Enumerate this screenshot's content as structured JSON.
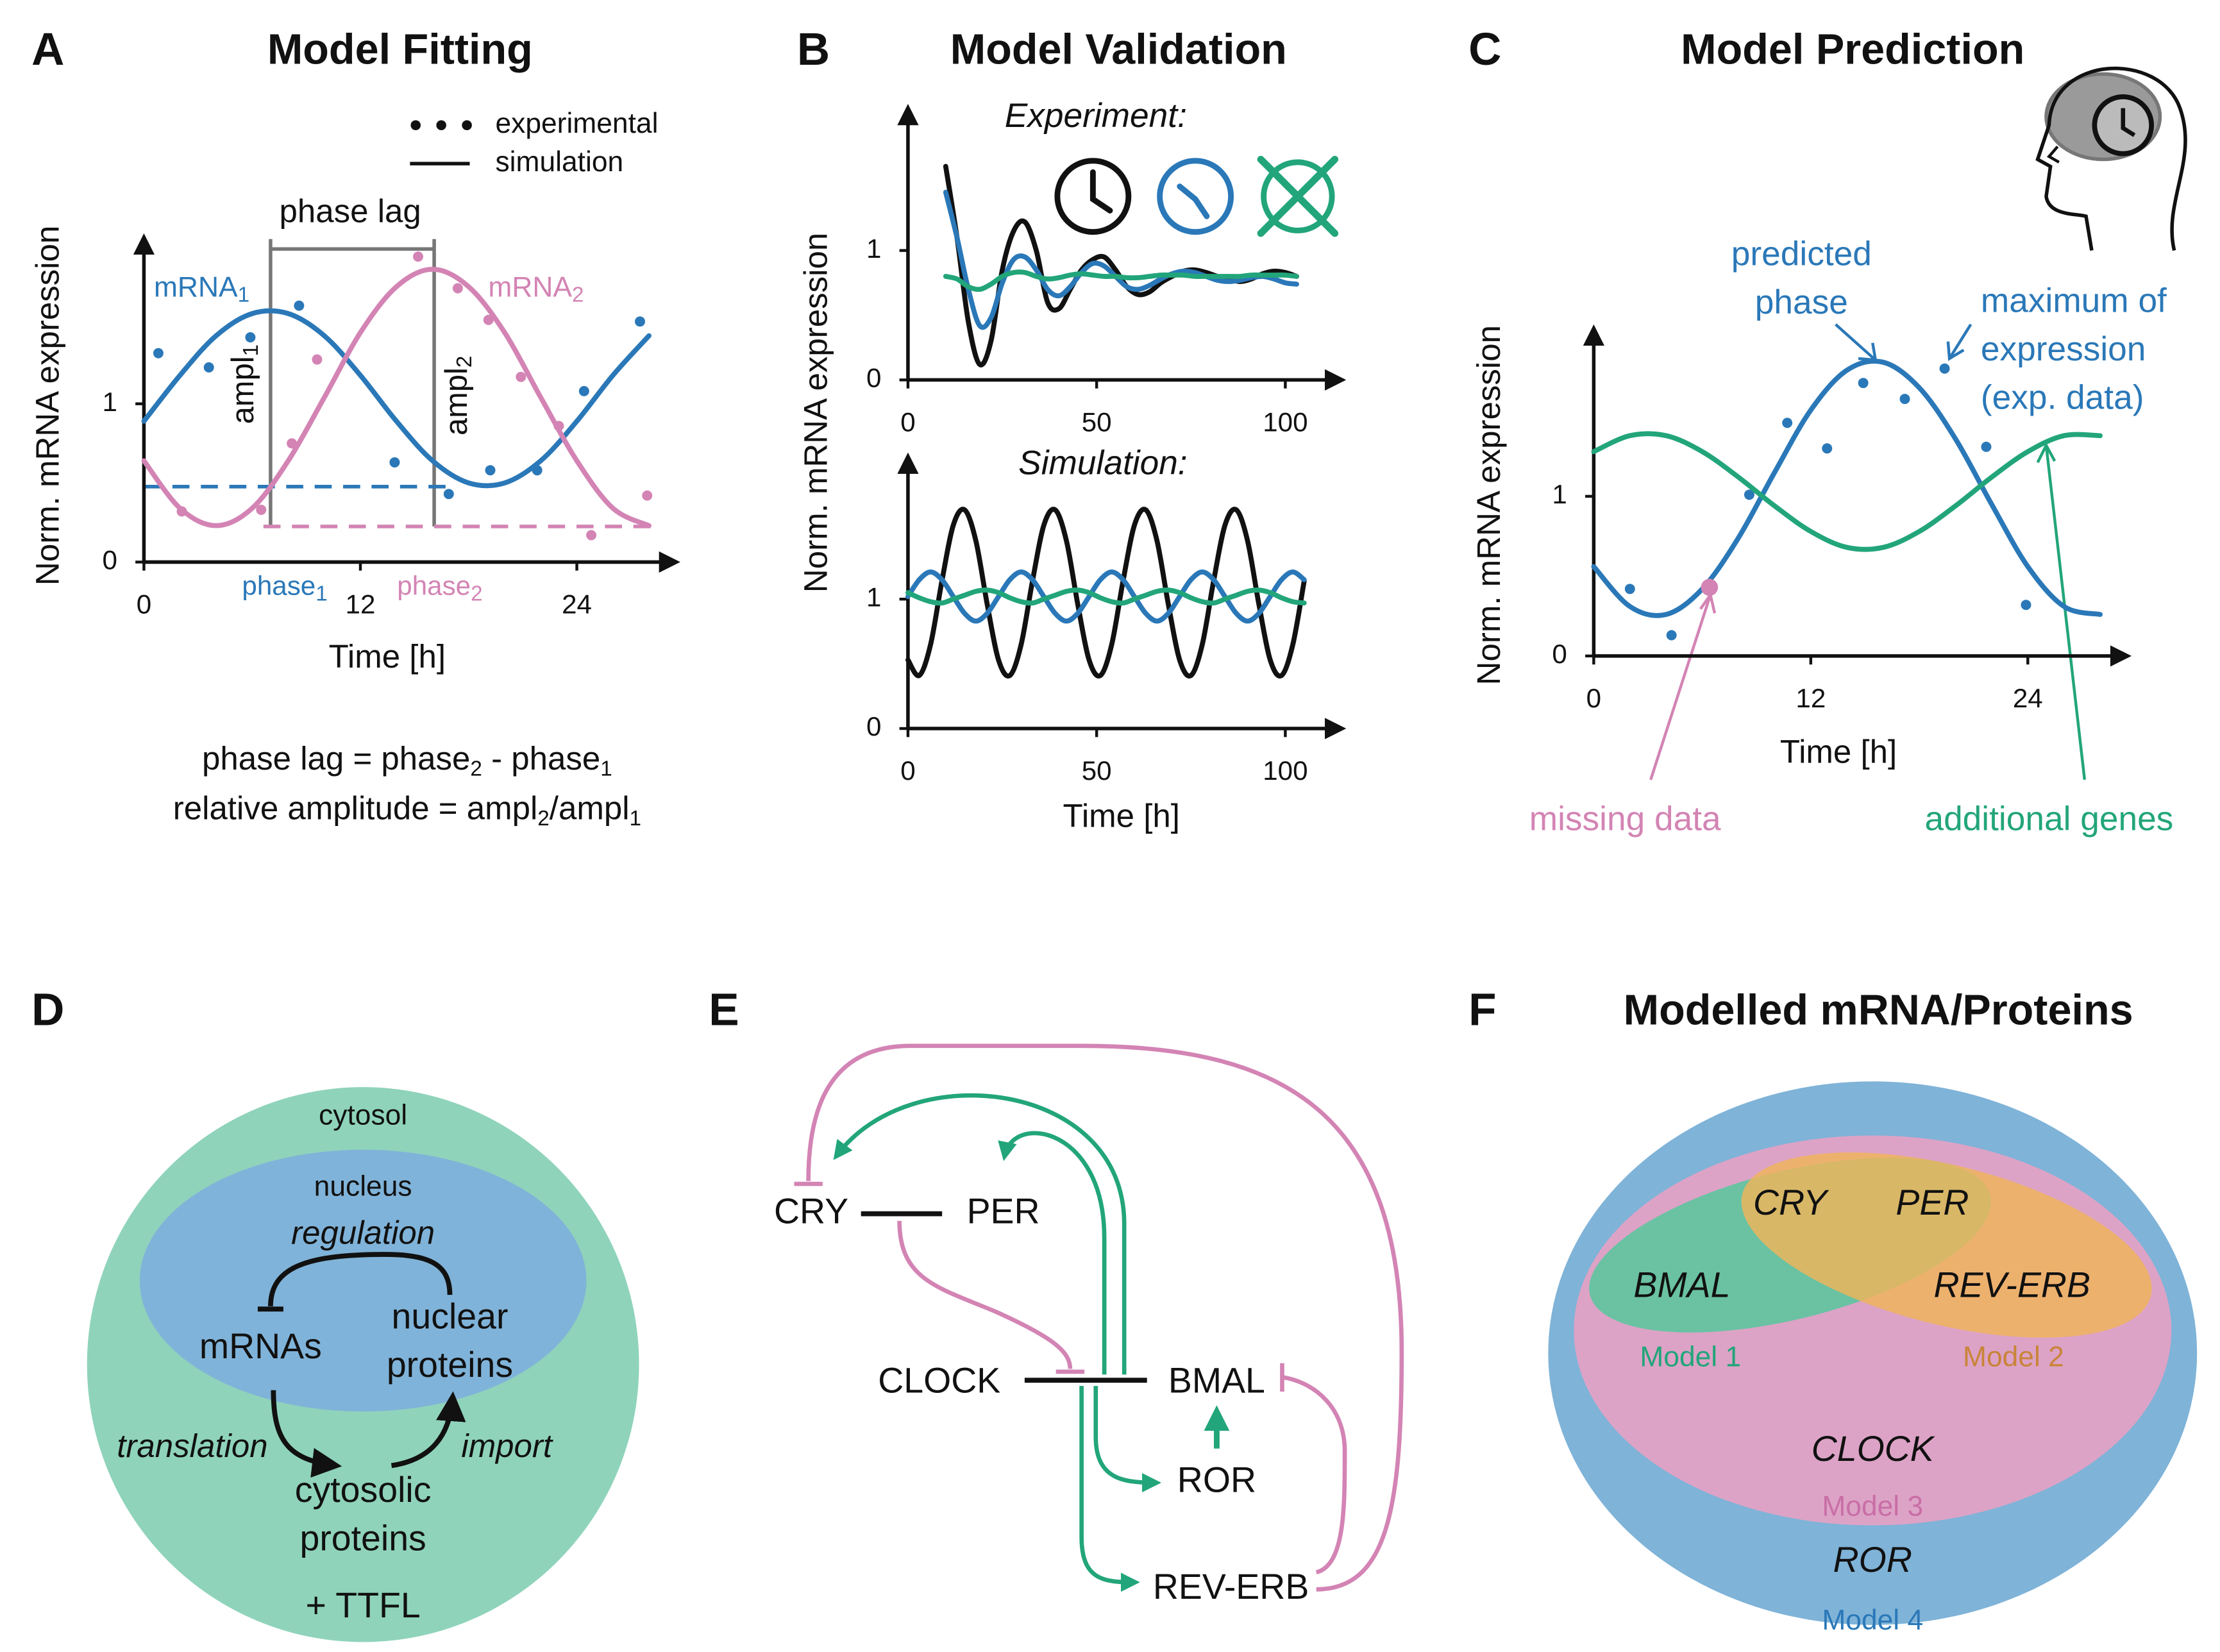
{
  "panel_labels": [
    "A",
    "B",
    "C",
    "D",
    "E",
    "F"
  ],
  "chart_data": [
    {
      "type": "line",
      "title": "Model Fitting",
      "xlabel": "Time [h]",
      "ylabel": "Norm. mRNA expression",
      "legend": [
        "experimental",
        "simulation"
      ],
      "xlim": [
        0,
        29.5
      ],
      "ylim": [
        0,
        2.05
      ],
      "xticks": [
        0,
        12,
        24
      ],
      "yticks": [
        0,
        1
      ],
      "x": [
        0,
        2,
        4,
        6,
        8,
        10,
        12,
        14,
        16,
        18,
        20,
        22,
        24,
        26,
        28
      ],
      "series": [
        {
          "label": {
            "text": "mRNA",
            "sub": "1"
          },
          "color": "#2a78b8",
          "values": [
            0.89,
            1.18,
            1.43,
            1.57,
            1.57,
            1.43,
            1.18,
            0.89,
            0.64,
            0.5,
            0.5,
            0.64,
            0.89,
            1.18,
            1.43
          ],
          "points": {
            "x": [
              0.8,
              3.6,
              5.9,
              8.6,
              13.9,
              16.9,
              19.2,
              21.8,
              24.4,
              27.5
            ],
            "values": [
              1.32,
              1.23,
              1.42,
              1.62,
              0.63,
              0.43,
              0.58,
              0.58,
              1.08,
              1.52
            ]
          }
        },
        {
          "label": {
            "text": "mRNA",
            "sub": "2"
          },
          "color": "#d384b4",
          "values": [
            0.64,
            0.34,
            0.23,
            0.34,
            0.64,
            1.04,
            1.45,
            1.74,
            1.85,
            1.74,
            1.45,
            1.04,
            0.64,
            0.34,
            0.23
          ],
          "points": {
            "x": [
              2.1,
              6.5,
              8.2,
              9.6,
              15.2,
              17.4,
              19.1,
              20.9,
              23.0,
              24.8,
              27.9
            ],
            "values": [
              0.32,
              0.33,
              0.75,
              1.28,
              1.93,
              1.73,
              1.53,
              1.17,
              0.86,
              0.17,
              0.42
            ]
          }
        }
      ],
      "annotations": {
        "phase_lag": "phase lag",
        "ampl_1": {
          "text": "ampl",
          "sub": "1"
        },
        "ampl_2": {
          "text": "ampl",
          "sub": "2"
        },
        "phase_1": {
          "text": "phase",
          "sub": "1"
        },
        "phase_2": {
          "text": "phase",
          "sub": "2"
        },
        "formula_1": [
          "phase lag = phase",
          "2",
          " - phase",
          "1"
        ],
        "formula_2": [
          "relative amplitude = ampl",
          "2",
          "/ampl",
          "1"
        ]
      }
    },
    {
      "type": "line",
      "title": "Model Validation",
      "subtitle": "Experiment:",
      "ylabel": "Norm. mRNA expression",
      "xlim": [
        0,
        115
      ],
      "ylim": [
        0,
        2.1
      ],
      "xticks": [
        0,
        50,
        100
      ],
      "yticks": [
        0,
        1
      ],
      "x": [
        10,
        13,
        16,
        19,
        22,
        25,
        28,
        31,
        34,
        37,
        40,
        43,
        46,
        49,
        52,
        55,
        58,
        61,
        64,
        67,
        70,
        73,
        76,
        79,
        82,
        85,
        88,
        91,
        94,
        97,
        100,
        103
      ],
      "series": [
        {
          "color": "#111111",
          "values": [
            1.65,
            1.1,
            0.45,
            0.12,
            0.3,
            0.85,
            1.15,
            1.22,
            1.0,
            0.6,
            0.55,
            0.7,
            0.85,
            0.93,
            0.95,
            0.85,
            0.72,
            0.66,
            0.68,
            0.75,
            0.8,
            0.84,
            0.85,
            0.83,
            0.8,
            0.78,
            0.76,
            0.78,
            0.82,
            0.84,
            0.83,
            0.8
          ]
        },
        {
          "color": "#2a78b8",
          "values": [
            1.45,
            1.1,
            0.7,
            0.42,
            0.48,
            0.75,
            0.93,
            0.95,
            0.85,
            0.7,
            0.65,
            0.72,
            0.83,
            0.9,
            0.88,
            0.8,
            0.72,
            0.7,
            0.73,
            0.78,
            0.82,
            0.84,
            0.83,
            0.8,
            0.77,
            0.76,
            0.77,
            0.79,
            0.8,
            0.78,
            0.75,
            0.74
          ]
        },
        {
          "color": "#22a57a",
          "values": [
            0.8,
            0.78,
            0.72,
            0.7,
            0.74,
            0.8,
            0.83,
            0.83,
            0.8,
            0.78,
            0.79,
            0.81,
            0.82,
            0.81,
            0.8,
            0.8,
            0.79,
            0.79,
            0.8,
            0.81,
            0.81,
            0.81,
            0.8,
            0.8,
            0.8,
            0.8,
            0.8,
            0.81,
            0.81,
            0.81,
            0.81,
            0.8
          ]
        }
      ]
    },
    {
      "type": "line",
      "subtitle": "Simulation:",
      "xlabel": "Time [h]",
      "xlim": [
        0,
        115
      ],
      "ylim": [
        0,
        2.1
      ],
      "xticks": [
        0,
        50,
        100
      ],
      "yticks": [
        0,
        1
      ],
      "x": [
        0,
        3,
        6,
        9,
        12,
        15,
        18,
        21,
        24,
        27,
        30,
        33,
        36,
        39,
        42,
        45,
        48,
        51,
        54,
        57,
        60,
        63,
        66,
        69,
        72,
        75,
        78,
        81,
        84,
        87,
        90,
        93,
        96,
        99,
        102,
        105
      ],
      "series": [
        {
          "color": "#111111",
          "values": [
            0.53,
            0.41,
            0.65,
            1.14,
            1.57,
            1.69,
            1.45,
            0.96,
            0.53,
            0.41,
            0.65,
            1.14,
            1.57,
            1.69,
            1.45,
            0.96,
            0.53,
            0.41,
            0.65,
            1.14,
            1.57,
            1.69,
            1.45,
            0.96,
            0.53,
            0.41,
            0.65,
            1.14,
            1.57,
            1.69,
            1.45,
            0.96,
            0.53,
            0.41,
            0.65,
            1.14
          ]
        },
        {
          "color": "#2a78b8",
          "values": [
            1.02,
            1.15,
            1.21,
            1.15,
            1.02,
            0.89,
            0.83,
            0.89,
            1.02,
            1.15,
            1.21,
            1.15,
            1.02,
            0.89,
            0.83,
            0.89,
            1.02,
            1.15,
            1.21,
            1.15,
            1.02,
            0.89,
            0.83,
            0.89,
            1.02,
            1.15,
            1.21,
            1.15,
            1.02,
            0.89,
            0.83,
            0.89,
            1.02,
            1.15,
            1.21,
            1.15
          ]
        },
        {
          "color": "#22a57a",
          "values": [
            1.05,
            1.01,
            0.98,
            0.97,
            1.0,
            1.03,
            1.06,
            1.07,
            1.05,
            1.01,
            0.98,
            0.97,
            1.0,
            1.03,
            1.06,
            1.07,
            1.05,
            1.01,
            0.98,
            0.97,
            1.0,
            1.03,
            1.06,
            1.07,
            1.05,
            1.01,
            0.98,
            0.97,
            1.0,
            1.03,
            1.06,
            1.07,
            1.05,
            1.01,
            0.98,
            0.97
          ]
        }
      ]
    },
    {
      "type": "line",
      "title": "Model Prediction",
      "xlabel": "Time [h]",
      "ylabel": "Norm. mRNA expression",
      "xlim": [
        0,
        29.5
      ],
      "ylim": [
        0,
        2.05
      ],
      "xticks": [
        0,
        12,
        24
      ],
      "yticks": [
        0,
        1
      ],
      "x": [
        0,
        2,
        4,
        6,
        8,
        10,
        12,
        14,
        16,
        18,
        20,
        22,
        24,
        26,
        28
      ],
      "series": [
        {
          "color": "#2a78b8",
          "values": [
            0.56,
            0.31,
            0.26,
            0.42,
            0.74,
            1.15,
            1.54,
            1.79,
            1.84,
            1.68,
            1.36,
            0.95,
            0.56,
            0.31,
            0.26
          ],
          "points": {
            "x": [
              2.0,
              4.3,
              8.6,
              10.7,
              12.9,
              14.9,
              17.2,
              19.4,
              21.7,
              23.9
            ],
            "values": [
              0.42,
              0.13,
              1.01,
              1.46,
              1.3,
              1.71,
              1.61,
              1.8,
              1.31,
              0.32
            ]
          }
        },
        {
          "color": "#22a57a",
          "values": [
            1.28,
            1.38,
            1.38,
            1.28,
            1.12,
            0.94,
            0.78,
            0.68,
            0.68,
            0.78,
            0.94,
            1.12,
            1.28,
            1.38,
            1.38
          ]
        }
      ],
      "highlight": {
        "x": 6.4,
        "value": 0.43,
        "color": "#d384b4"
      },
      "annotations": {
        "predicted_phase": [
          "predicted",
          "phase"
        ],
        "maximum": [
          "maximum of",
          "expression",
          "(exp. data)"
        ],
        "missing_data": "missing data",
        "additional_genes": "additional genes"
      }
    }
  ],
  "diagram_d": {
    "cytosol": "cytosol",
    "nucleus": "nucleus",
    "regulation": "regulation",
    "mrnas": "mRNAs",
    "nuclear_proteins": [
      "nuclear",
      "proteins"
    ],
    "translation": "translation",
    "import": "import",
    "cytosolic_proteins": [
      "cytosolic",
      "proteins"
    ],
    "ttfl": "+ TTFL"
  },
  "diagram_e": {
    "nodes": [
      "CRY",
      "PER",
      "CLOCK",
      "BMAL",
      "ROR",
      "REV-ERB"
    ]
  },
  "diagram_f": {
    "title": "Modelled mRNA/Proteins",
    "genes": [
      "CRY",
      "PER",
      "BMAL",
      "REV-ERB",
      "CLOCK",
      "ROR"
    ],
    "models": [
      "Model 1",
      "Model 2",
      "Model 3",
      "Model 4"
    ]
  }
}
